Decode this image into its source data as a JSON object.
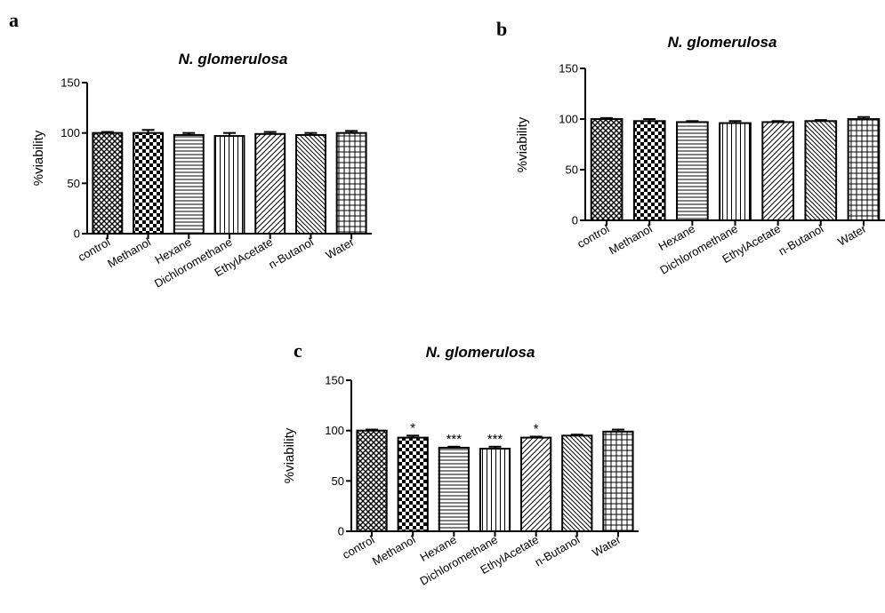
{
  "panels": [
    {
      "letter": "a",
      "chart_data": {
        "type": "bar",
        "title": "N. glomerulosa",
        "ylabel": "%viability",
        "xlabel": "",
        "ylim": [
          0,
          150
        ],
        "yticks": [
          0,
          50,
          100,
          150
        ],
        "categories": [
          "control",
          "Methanol",
          "Hexane",
          "Dichloromethane",
          "EthylAcetate",
          "n-Butanol",
          "Water"
        ],
        "values": [
          100,
          100,
          98,
          97,
          99,
          98,
          100
        ],
        "errors": [
          1,
          3,
          2,
          3,
          2,
          2,
          2
        ],
        "annotations": [
          "",
          "",
          "",
          "",
          "",
          "",
          ""
        ],
        "patterns": [
          "crosshatch",
          "checker",
          "hlines",
          "vlines",
          "diag-right",
          "diag-left",
          "grid"
        ]
      }
    },
    {
      "letter": "b",
      "chart_data": {
        "type": "bar",
        "title": "N. glomerulosa",
        "ylabel": "%viability",
        "xlabel": "",
        "ylim": [
          0,
          150
        ],
        "yticks": [
          0,
          50,
          100,
          150
        ],
        "categories": [
          "control",
          "Methanol",
          "Hexane",
          "Dichloromethane",
          "EthylAcetate",
          "n-Butanol",
          "Water"
        ],
        "values": [
          100,
          98,
          97,
          96,
          97,
          98,
          100
        ],
        "errors": [
          1,
          2,
          1,
          2,
          1,
          1,
          2
        ],
        "annotations": [
          "",
          "",
          "",
          "",
          "",
          "",
          ""
        ],
        "patterns": [
          "crosshatch",
          "checker",
          "hlines",
          "vlines",
          "diag-right",
          "diag-left",
          "grid"
        ]
      }
    },
    {
      "letter": "c",
      "chart_data": {
        "type": "bar",
        "title": "N. glomerulosa",
        "ylabel": "%viability",
        "xlabel": "",
        "ylim": [
          0,
          150
        ],
        "yticks": [
          0,
          50,
          100,
          150
        ],
        "categories": [
          "control",
          "Methanol",
          "Hexane",
          "Dichloromethane",
          "EthylAcetate",
          "n-Butanol",
          "Water"
        ],
        "values": [
          100,
          93,
          83,
          82,
          93,
          95,
          99
        ],
        "errors": [
          1,
          2,
          1,
          2,
          1,
          1,
          2
        ],
        "annotations": [
          "",
          "*",
          "***",
          "***",
          "*",
          "",
          ""
        ],
        "patterns": [
          "crosshatch",
          "checker",
          "hlines",
          "vlines",
          "diag-right",
          "diag-left",
          "grid"
        ]
      }
    }
  ],
  "colors": {
    "bar_stroke": "#000000",
    "pattern_ink": "#000000",
    "background": "#ffffff"
  }
}
